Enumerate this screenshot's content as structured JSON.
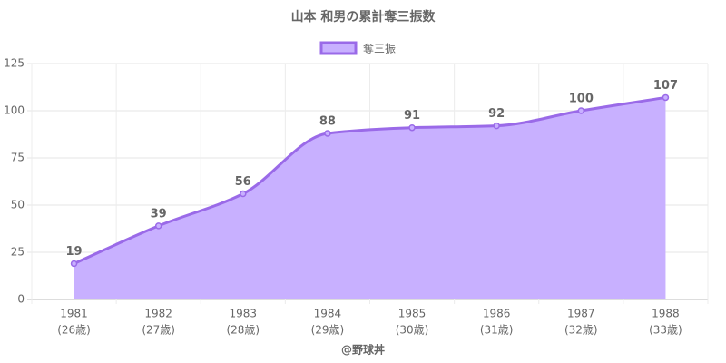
{
  "chart_data": {
    "type": "line",
    "title": "山本 和男の累計奪三振数",
    "categories": [
      [
        "1981",
        "(26歳)"
      ],
      [
        "1982",
        "(27歳)"
      ],
      [
        "1983",
        "(28歳)"
      ],
      [
        "1984",
        "(29歳)"
      ],
      [
        "1985",
        "(30歳)"
      ],
      [
        "1986",
        "(31歳)"
      ],
      [
        "1987",
        "(32歳)"
      ],
      [
        "1988",
        "(33歳)"
      ]
    ],
    "series": [
      {
        "name": "奪三振",
        "color": "#9a6ae8",
        "fill": "#c8b0ff",
        "values": [
          19,
          39,
          56,
          88,
          91,
          92,
          100,
          107
        ]
      }
    ],
    "ylim": [
      0,
      125
    ],
    "yticks": [
      0,
      25,
      50,
      75,
      100,
      125
    ],
    "grid": true,
    "legend": "top",
    "credit": "@野球丼"
  }
}
